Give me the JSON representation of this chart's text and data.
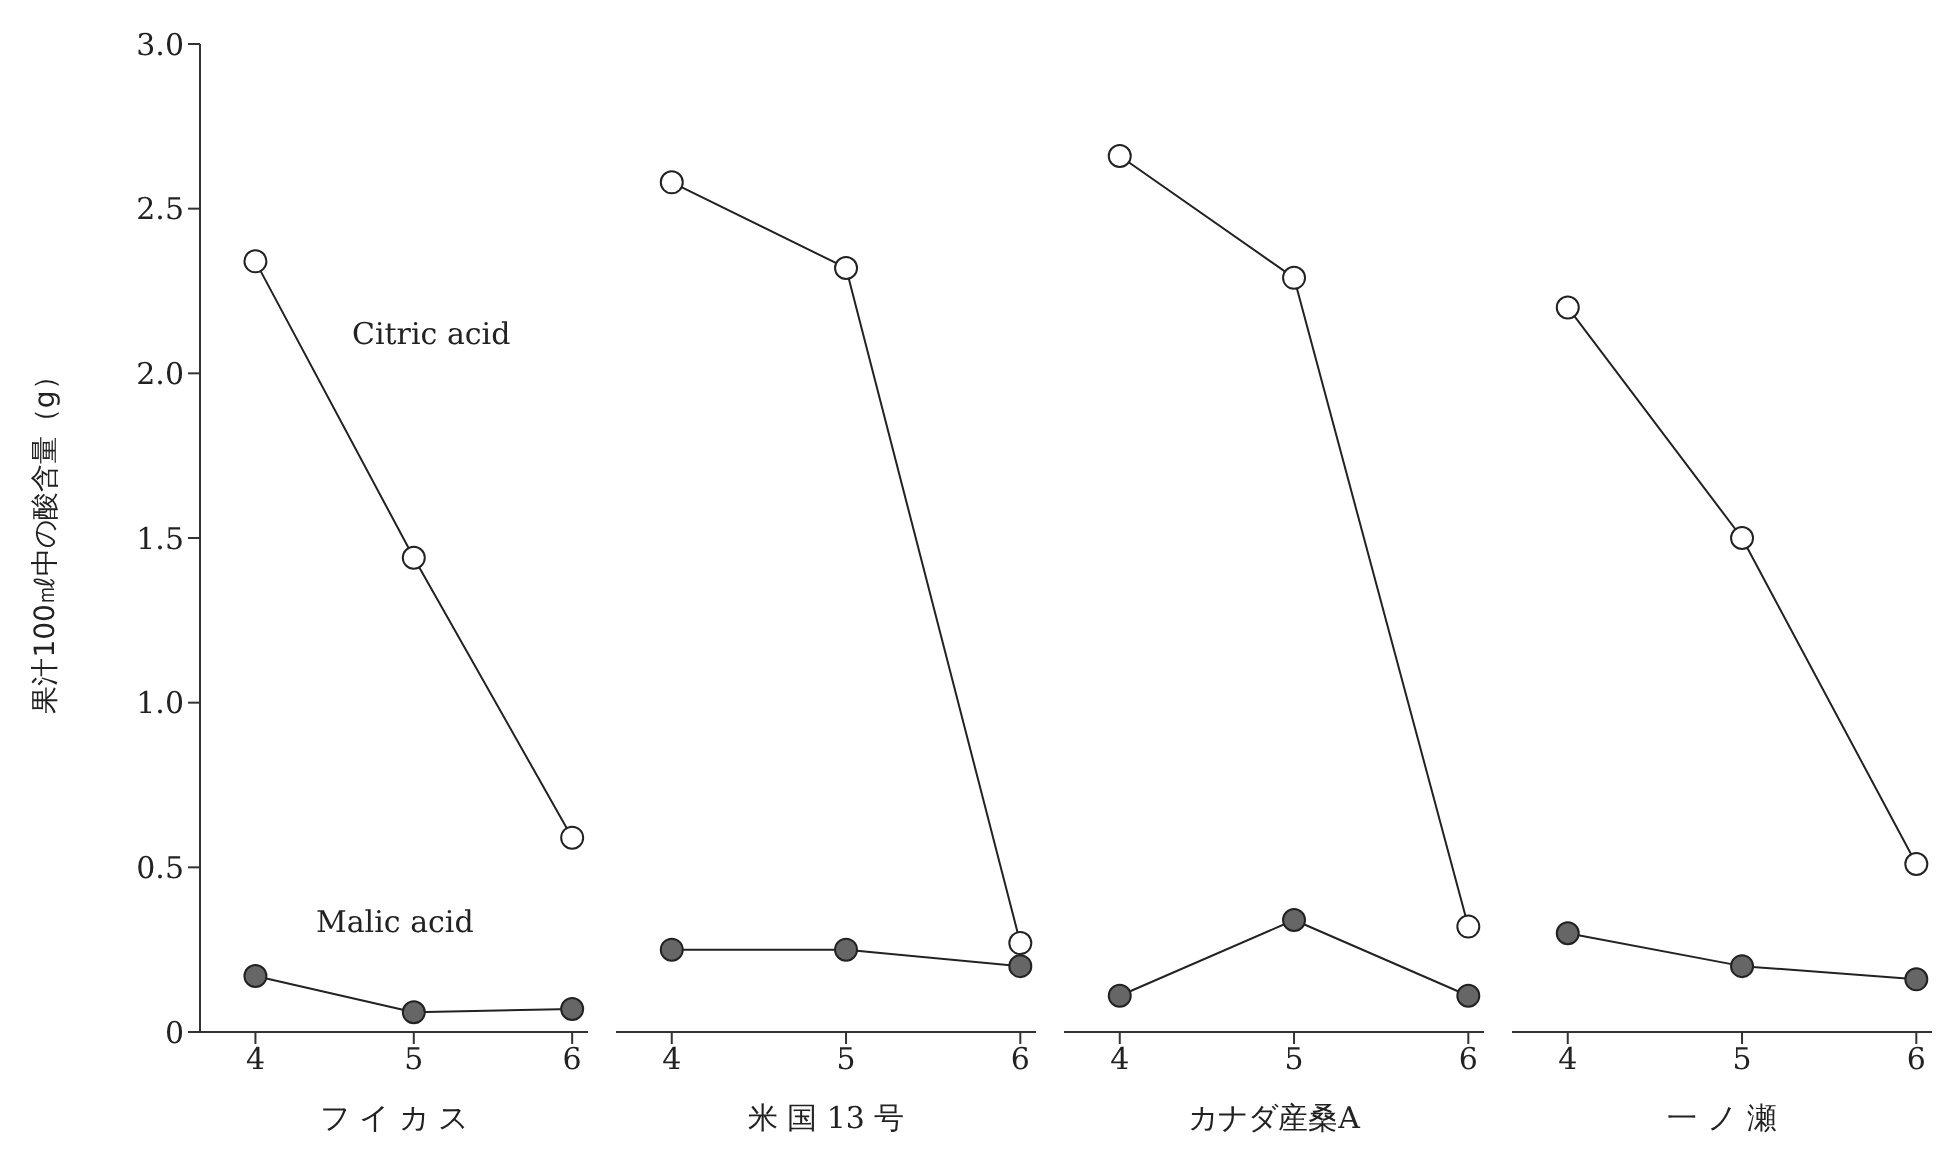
{
  "chart_data": [
    {
      "type": "line",
      "xlabel": "フ イ カ ス",
      "ylabel": "果汁100㎖中の酸含量（g）",
      "x": [
        4,
        5,
        6
      ],
      "xlim": [
        3.65,
        6.1
      ],
      "xticks": [
        4,
        5,
        6
      ],
      "ylim": [
        0,
        3
      ],
      "yticks": [
        0,
        {
          "value": 0.5,
          "label": "0.5"
        },
        {
          "value": 1,
          "label": "1.0"
        },
        {
          "value": 1.5,
          "label": "1.5"
        },
        {
          "value": 2,
          "label": "2.0"
        },
        {
          "value": 2.5,
          "label": "2.5"
        },
        {
          "value": 3,
          "label": "3.0"
        }
      ],
      "marker": "circle",
      "series": [
        {
          "color": "#ffffff",
          "values": [
            2.34,
            1.44,
            0.59
          ]
        },
        {
          "color": "#666666",
          "values": [
            0.17,
            0.06,
            0.07
          ]
        }
      ],
      "annotations": [
        "Citric acid",
        "Malic acid"
      ]
    },
    {
      "type": "line",
      "xlabel": "米 国 13 号",
      "x": [
        4,
        5,
        6
      ],
      "xlim": [
        3.68,
        6.09
      ],
      "xticks": [
        4,
        5,
        6
      ],
      "ylim": [
        0,
        3
      ],
      "tick_labels": "x",
      "marker": "circle",
      "series": [
        {
          "color": "#ffffff",
          "values": [
            2.58,
            2.32,
            0.27
          ]
        },
        {
          "color": "#666666",
          "values": [
            0.25,
            0.25,
            0.2
          ]
        }
      ]
    },
    {
      "type": "line",
      "xlabel": "カナダ産桑A",
      "x": [
        4,
        5,
        6
      ],
      "xlim": [
        3.68,
        6.09
      ],
      "xticks": [
        4,
        5,
        6
      ],
      "ylim": [
        0,
        3
      ],
      "tick_labels": "x",
      "marker": "circle",
      "series": [
        {
          "color": "#ffffff",
          "values": [
            2.66,
            2.29,
            0.32
          ]
        },
        {
          "color": "#666666",
          "values": [
            0.11,
            0.34,
            0.11
          ]
        }
      ]
    },
    {
      "type": "line",
      "xlabel": "一 ノ 瀬",
      "x": [
        4,
        5,
        6
      ],
      "xlim": [
        3.68,
        6.09
      ],
      "xticks": [
        4,
        5,
        6
      ],
      "ylim": [
        0,
        3
      ],
      "tick_labels": "x",
      "marker": "circle",
      "series": [
        {
          "color": "#ffffff",
          "values": [
            2.2,
            1.5,
            0.51
          ]
        },
        {
          "color": "#666666",
          "values": [
            0.3,
            0.2,
            0.16
          ]
        }
      ]
    }
  ]
}
